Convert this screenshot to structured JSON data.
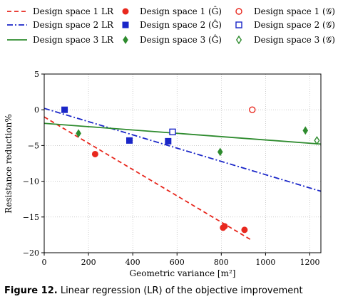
{
  "chart_data": {
    "type": "scatter",
    "xlabel": "Geometric variance [m²]",
    "ylabel": "Resistance reduction%",
    "xlim": [
      0,
      1250
    ],
    "ylim": [
      -20,
      5
    ],
    "xticks": [
      "0",
      "200",
      "400",
      "600",
      "800",
      "1000",
      "1200"
    ],
    "yticks": [
      "5",
      "0",
      "−5",
      "−10",
      "−15",
      "−20"
    ],
    "grid": true,
    "legend_position": "top, above plot",
    "regression_lines": [
      {
        "name": "Design space 1 LR",
        "color": "#e8281e",
        "style": "dashed",
        "x": [
          0,
          940
        ],
        "y": [
          -1.0,
          -18.3
        ]
      },
      {
        "name": "Design space 2 LR",
        "color": "#1a26c8",
        "style": "dashdot",
        "x": [
          0,
          1250
        ],
        "y": [
          0.2,
          -11.4
        ]
      },
      {
        "name": "Design space 3 LR",
        "color": "#2e8b2e",
        "style": "solid",
        "x": [
          0,
          1250
        ],
        "y": [
          -1.9,
          -4.8
        ]
      }
    ],
    "series": [
      {
        "name": "Design space 1 (Ĝ)",
        "color": "#e8281e",
        "marker": "circle",
        "filled": true,
        "x": [
          230,
          808,
          815,
          905
        ],
        "y": [
          -6.2,
          -16.5,
          -16.3,
          -16.8
        ]
      },
      {
        "name": "Design space 2 (Ĝ)",
        "color": "#1a26c8",
        "marker": "square",
        "filled": true,
        "x": [
          92,
          385,
          560
        ],
        "y": [
          0.0,
          -4.3,
          -4.4
        ]
      },
      {
        "name": "Design space 3 (Ĝ)",
        "color": "#2e8b2e",
        "marker": "diamond",
        "filled": true,
        "x": [
          155,
          795,
          1180
        ],
        "y": [
          -3.3,
          -5.9,
          -2.9
        ]
      },
      {
        "name": "Design space 1 (𝒢)",
        "color": "#e8281e",
        "marker": "circle",
        "filled": false,
        "x": [
          940
        ],
        "y": [
          0.0
        ]
      },
      {
        "name": "Design space 2 (𝒢)",
        "color": "#1a26c8",
        "marker": "square",
        "filled": false,
        "x": [
          580
        ],
        "y": [
          -3.1
        ]
      },
      {
        "name": "Design space 3 (𝒢)",
        "color": "#2e8b2e",
        "marker": "diamond",
        "filled": false,
        "x": [
          1232
        ],
        "y": [
          -4.3
        ]
      }
    ]
  },
  "caption": {
    "label": "Figure 12.",
    "text": "Linear regression (LR) of the objective improvement"
  }
}
